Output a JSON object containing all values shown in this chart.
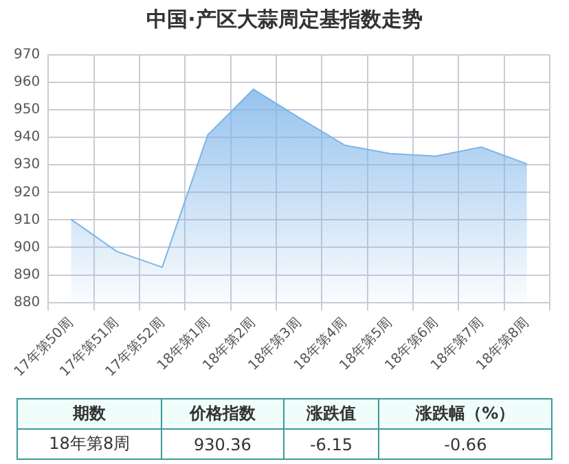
{
  "chart_data": {
    "type": "area",
    "title": "中国·产区大蒜周定基指数走势",
    "categories": [
      "17年第50周",
      "17年第51周",
      "17年第52周",
      "18年第1周",
      "18年第2周",
      "18年第3周",
      "18年第4周",
      "18年第5周",
      "18年第6周",
      "18年第7周",
      "18年第8周"
    ],
    "series": [
      {
        "color": "#7db4e8",
        "values": [
          910.2,
          898.6,
          892.8,
          940.9,
          957.5,
          947.2,
          937.2,
          934.1,
          933.2,
          936.5,
          930.36
        ]
      }
    ],
    "ylim": [
      880,
      970
    ],
    "yticks": [
      880,
      890,
      900,
      910,
      920,
      930,
      940,
      950,
      960,
      970
    ],
    "grid": true,
    "legend": false,
    "annotations": [
      "期数",
      "价格指数",
      "涨跌值",
      "涨跌幅（%）",
      "18年第8周",
      "930.36",
      "-6.15",
      "-0.66"
    ]
  }
}
